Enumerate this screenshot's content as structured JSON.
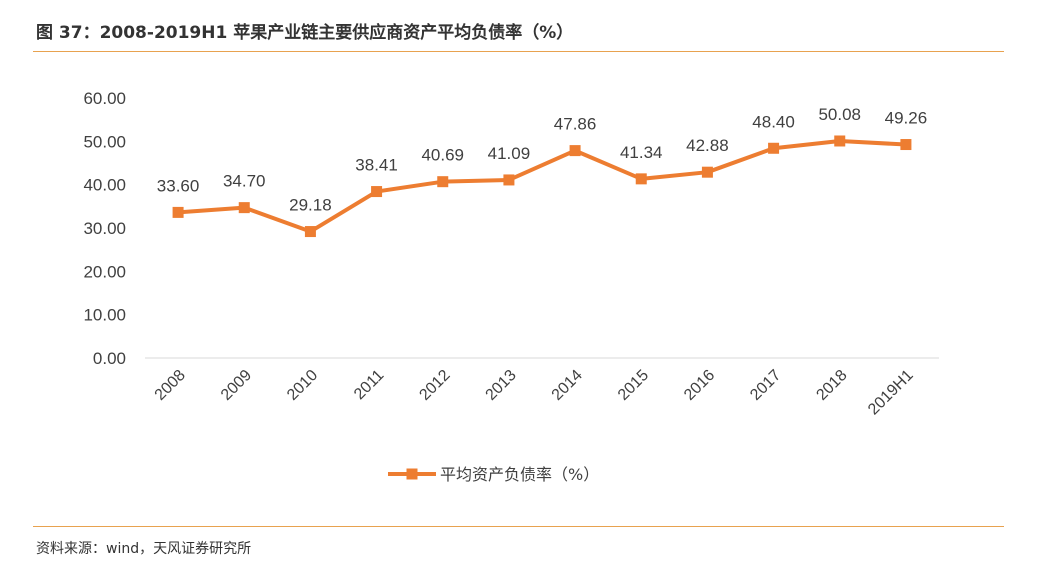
{
  "title": "图 37：2008-2019H1 苹果产业链主要供应商资产平均负债率（%）",
  "source": "资料来源：wind，天风证券研究所",
  "colors": {
    "series": "#ed7d31",
    "rule": "#e8a24f",
    "axis": "#d9d9d9",
    "text": "#404040"
  },
  "chart_data": {
    "type": "line",
    "categories": [
      "2008",
      "2009",
      "2010",
      "2011",
      "2012",
      "2013",
      "2014",
      "2015",
      "2016",
      "2017",
      "2018",
      "2019H1"
    ],
    "series": [
      {
        "name": "平均资产负债率（%）",
        "values": [
          33.6,
          34.7,
          29.18,
          38.41,
          40.69,
          41.09,
          47.86,
          41.34,
          42.88,
          48.4,
          50.08,
          49.26
        ],
        "labels": [
          "33.60",
          "34.70",
          "29.18",
          "38.41",
          "40.69",
          "41.09",
          "47.86",
          "41.34",
          "42.88",
          "48.40",
          "50.08",
          "49.26"
        ],
        "marker": "square"
      }
    ],
    "y_ticks": [
      "0.00",
      "10.00",
      "20.00",
      "30.00",
      "40.00",
      "50.00",
      "60.00"
    ],
    "ylim": [
      0,
      60
    ],
    "grid": false,
    "legend": "bottom-center",
    "xtick_rotation": "diagonal"
  }
}
